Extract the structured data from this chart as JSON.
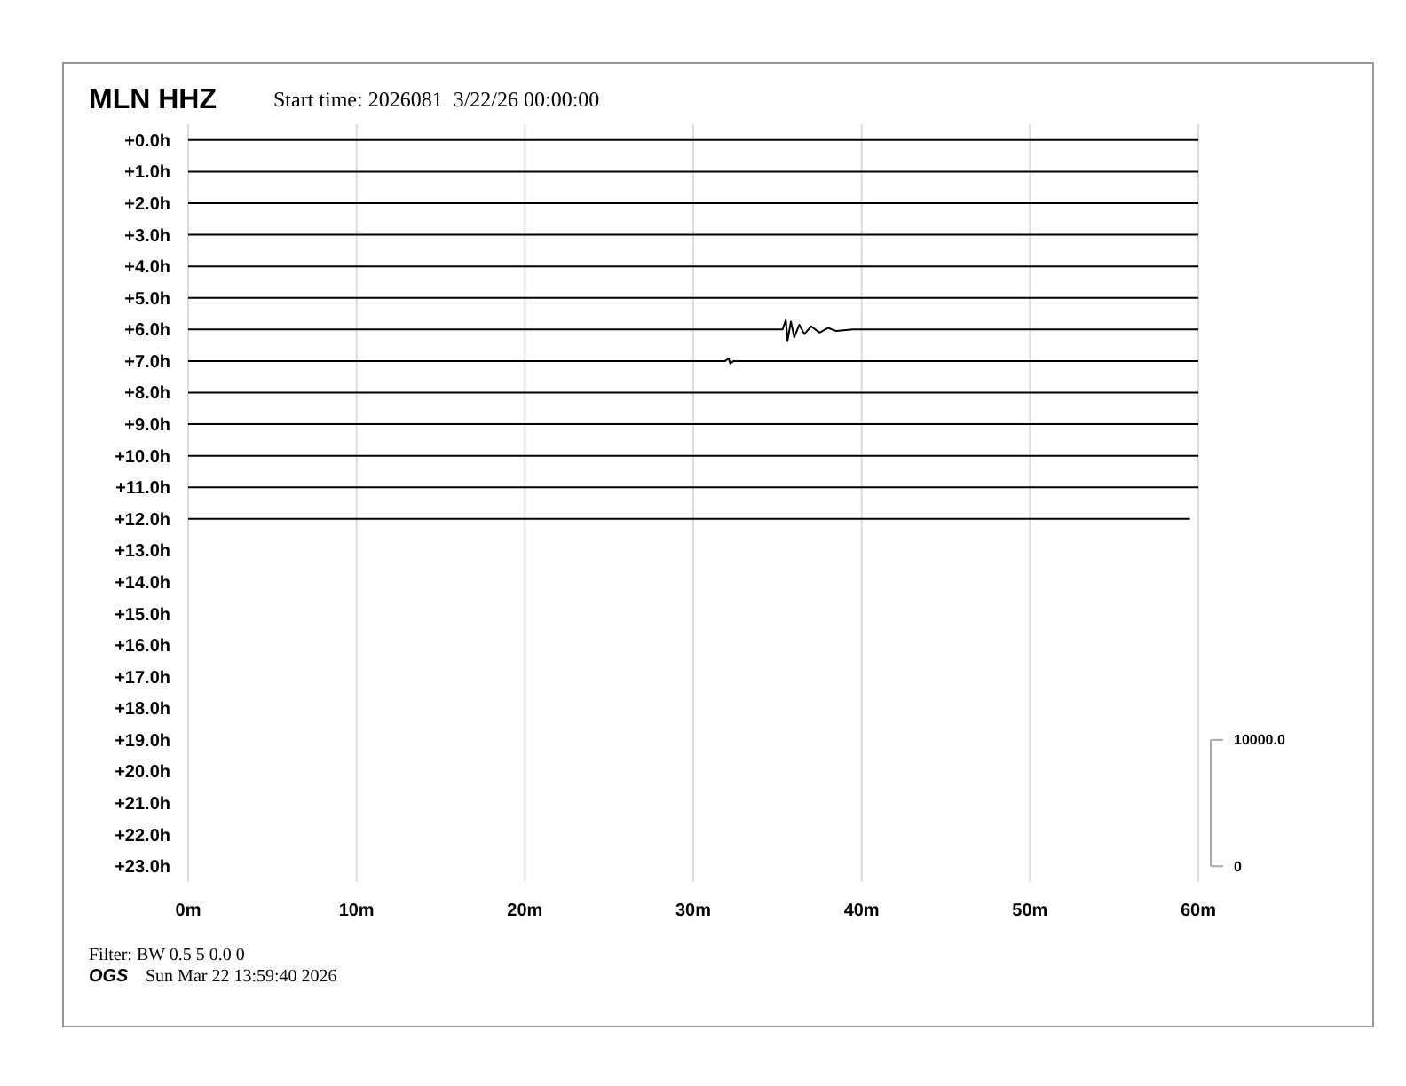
{
  "chart_data": {
    "type": "line",
    "title": "MLN HHZ",
    "subtitle": "Start time: 2026081  3/22/26 00:00:00",
    "annotations": [
      "Filter: BW 0.5 5 0.0 0",
      "OGS",
      "Sun Mar 22 13:59:40 2026"
    ],
    "xlim": [
      0,
      60
    ],
    "xticks": [
      {
        "value": 0,
        "label": "0m"
      },
      {
        "value": 10,
        "label": "10m"
      },
      {
        "value": 20,
        "label": "20m"
      },
      {
        "value": 30,
        "label": "30m"
      },
      {
        "value": 40,
        "label": "40m"
      },
      {
        "value": 50,
        "label": "50m"
      },
      {
        "value": 60,
        "label": "60m"
      }
    ],
    "ylim": [
      23.5,
      -0.5
    ],
    "yticks": [
      {
        "value": 0,
        "label": "+0.0h"
      },
      {
        "value": 1,
        "label": "+1.0h"
      },
      {
        "value": 2,
        "label": "+2.0h"
      },
      {
        "value": 3,
        "label": "+3.0h"
      },
      {
        "value": 4,
        "label": "+4.0h"
      },
      {
        "value": 5,
        "label": "+5.0h"
      },
      {
        "value": 6,
        "label": "+6.0h"
      },
      {
        "value": 7,
        "label": "+7.0h"
      },
      {
        "value": 8,
        "label": "+8.0h"
      },
      {
        "value": 9,
        "label": "+9.0h"
      },
      {
        "value": 10,
        "label": "+10.0h"
      },
      {
        "value": 11,
        "label": "+11.0h"
      },
      {
        "value": 12,
        "label": "+12.0h"
      },
      {
        "value": 13,
        "label": "+13.0h"
      },
      {
        "value": 14,
        "label": "+14.0h"
      },
      {
        "value": 15,
        "label": "+15.0h"
      },
      {
        "value": 16,
        "label": "+16.0h"
      },
      {
        "value": 17,
        "label": "+17.0h"
      },
      {
        "value": 18,
        "label": "+18.0h"
      },
      {
        "value": 19,
        "label": "+19.0h"
      },
      {
        "value": 20,
        "label": "+20.0h"
      },
      {
        "value": 21,
        "label": "+21.0h"
      },
      {
        "value": 22,
        "label": "+22.0h"
      },
      {
        "value": 23,
        "label": "+23.0h"
      }
    ],
    "y2lim": [
      -1250,
      58750
    ],
    "y2ticks": [
      0,
      {
        "value": 10000,
        "label": "10000.0"
      }
    ],
    "grid": "x",
    "series": [
      {
        "color": "#000000",
        "x": [
          0,
          60
        ],
        "values": [
          0,
          0
        ]
      },
      {
        "color": "#000000",
        "x": [
          0,
          60
        ],
        "values": [
          1,
          1
        ]
      },
      {
        "color": "#000000",
        "x": [
          0,
          60
        ],
        "values": [
          2,
          2
        ]
      },
      {
        "color": "#000000",
        "x": [
          0,
          60
        ],
        "values": [
          3,
          3
        ]
      },
      {
        "color": "#000000",
        "x": [
          0,
          60
        ],
        "values": [
          4,
          4
        ]
      },
      {
        "color": "#000000",
        "x": [
          0,
          60
        ],
        "values": [
          5,
          5
        ]
      },
      {
        "color": "#000000",
        "x": [
          0,
          35.3,
          35.5,
          35.6,
          35.8,
          36.0,
          36.3,
          36.6,
          37.0,
          37.5,
          38.0,
          38.5,
          39.5,
          60
        ],
        "values": [
          6,
          6,
          5.7,
          6.35,
          5.75,
          6.25,
          5.85,
          6.15,
          5.9,
          6.1,
          5.95,
          6.05,
          6,
          6
        ]
      },
      {
        "color": "#000000",
        "x": [
          0,
          31.9,
          32.1,
          32.2,
          32.4,
          60
        ],
        "values": [
          7,
          7,
          6.92,
          7.08,
          7,
          7
        ]
      },
      {
        "color": "#000000",
        "x": [
          0,
          60
        ],
        "values": [
          8,
          8
        ]
      },
      {
        "color": "#000000",
        "x": [
          0,
          60
        ],
        "values": [
          9,
          9
        ]
      },
      {
        "color": "#000000",
        "x": [
          0,
          60
        ],
        "values": [
          10,
          10
        ]
      },
      {
        "color": "#000000",
        "x": [
          0,
          60
        ],
        "values": [
          11,
          11
        ]
      },
      {
        "color": "#000000",
        "x": [
          0,
          59.5
        ],
        "values": [
          12,
          12
        ]
      }
    ]
  }
}
